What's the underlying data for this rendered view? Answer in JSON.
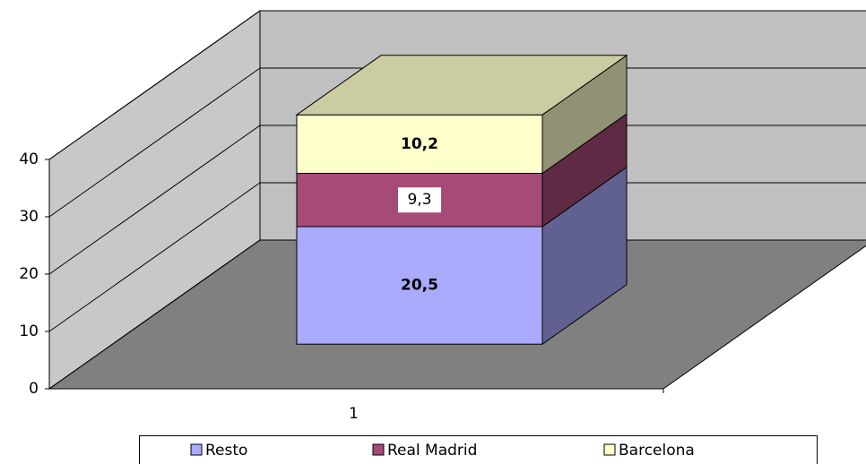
{
  "chart_data": {
    "type": "bar3d_stacked",
    "categories": [
      "1"
    ],
    "series": [
      {
        "name": "Resto",
        "color": "#aaaaff",
        "values": [
          20.5
        ],
        "value_labels": [
          "20,5"
        ]
      },
      {
        "name": "Real Madrid",
        "color": "#a64a78",
        "values": [
          9.3
        ],
        "value_labels": [
          "9,3"
        ]
      },
      {
        "name": "Barcelona",
        "color": "#ffffcc",
        "values": [
          10.2
        ],
        "value_labels": [
          "10,2"
        ]
      }
    ],
    "ylim": [
      0,
      40
    ],
    "yticks": [
      0,
      10,
      20,
      30,
      40
    ],
    "grid": true,
    "legend": "bottom"
  }
}
